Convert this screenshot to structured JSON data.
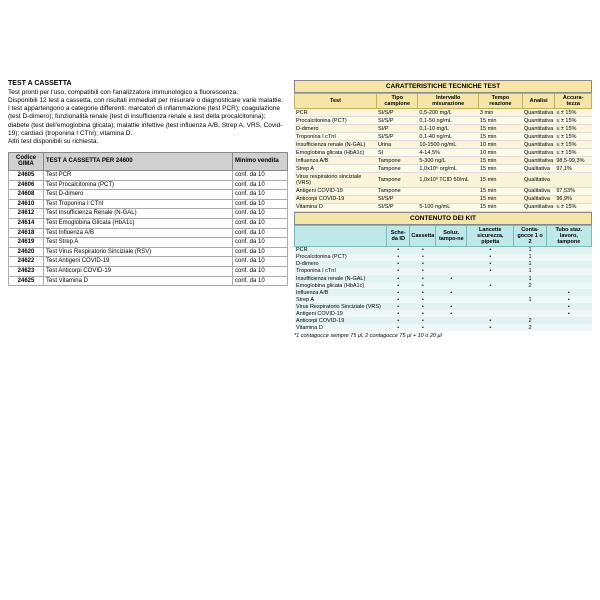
{
  "description": {
    "title": "TEST A CASSETTA",
    "p1": "Test pronti per l'uso, compatibili con l'analizzatore immunologico a fluorescenza.",
    "p2": "Disponibili 12 test a cassetta, con risultati immediati per misurare o diagnosticare varie malattie.",
    "p3": "I test appartengono a categorie differenti: marcatori di infiammazione (test PCR); coagulazione (test D-dimero); funzionalità renale (test di insufficienza renale e test della procalcitonina); diabete (test dell'emoglobina glicata); malattie infettive (test influenza A/B, Strep A, VRS, Covid-19); cardiaci (troponina I CTnI); vitamina D.",
    "p4": "Altri test disponibili su richiesta."
  },
  "leftTable": {
    "hCode": "Codice GIMA",
    "hDesc": "TEST A CASSETTA PER 24600",
    "hMin": "Minimo vendita",
    "rows": [
      {
        "c": "24605",
        "d": "Test PCR",
        "m": "conf. da 10"
      },
      {
        "c": "24606",
        "d": "Test Procalcitonina (PCT)",
        "m": "conf. da 10"
      },
      {
        "c": "24608",
        "d": "Test D-dimero",
        "m": "conf. da 10"
      },
      {
        "c": "24610",
        "d": "Test Troponina I CTnI",
        "m": "conf. da 10"
      },
      {
        "c": "24612",
        "d": "Test Insufficienza Renale (N-GAL)",
        "m": "conf. da 10"
      },
      {
        "c": "24614",
        "d": "Test Emoglobina Glicata (HbA1c)",
        "m": "conf. da 10"
      },
      {
        "c": "24618",
        "d": "Test Influenza A/B",
        "m": "conf. da 10"
      },
      {
        "c": "24619",
        "d": "Test Strep A",
        "m": "conf. da 10"
      },
      {
        "c": "24620",
        "d": "Test Virus Respiratorio Sinciziale (RSV)",
        "m": "conf. da 10"
      },
      {
        "c": "24622",
        "d": "Test Antigeni COVID-19",
        "m": "conf. da 10"
      },
      {
        "c": "24623",
        "d": "Test Anticorpi COVID-19",
        "m": "conf. da 10"
      },
      {
        "c": "24625",
        "d": "Test Vitamina D",
        "m": "conf. da 10"
      }
    ]
  },
  "techTable": {
    "title": "CARATTERISTICHE TECNICHE TEST",
    "h": [
      "Test",
      "Tipo campione",
      "Intervallo misurazione",
      "Tempo reazione",
      "Analisi",
      "Accura-tezza"
    ],
    "rows": [
      {
        "n": "PCR",
        "t": "SI/S/P",
        "i": "0,5-200 mg/L",
        "r": "3 min",
        "a": "Quantitativa",
        "e": "≤ ± 15%"
      },
      {
        "n": "Procalcitonina (PCT)",
        "t": "SI/S/P",
        "i": "0,1-50 ng/mL",
        "r": "15 min",
        "a": "Quantitativa",
        "e": "≤ ± 15%"
      },
      {
        "n": "D-dimero",
        "t": "SI/P",
        "i": "0,1-10 mg/L",
        "r": "15 min",
        "a": "Quantitativa",
        "e": "≤ ± 15%"
      },
      {
        "n": "Troponina I cTnI",
        "t": "SI/S/P",
        "i": "0,1-40 ng/mL",
        "r": "15 min",
        "a": "Quantitativa",
        "e": "≤ ± 15%"
      },
      {
        "n": "Insufficienza renale (N-GAL)",
        "t": "Urina",
        "i": "10-1500 ng/mL",
        "r": "10 min",
        "a": "Quantitativa",
        "e": "≤ ± 15%"
      },
      {
        "n": "Emoglobina glicata (HbA1c)",
        "t": "SI",
        "i": "4-14,5%",
        "r": "10 min",
        "a": "Quantitativa",
        "e": "≤ ± 15%"
      },
      {
        "n": "Influenza A/B",
        "t": "Tampone",
        "i": "5-300 ng/L",
        "r": "15 min",
        "a": "Quantitativa",
        "e": "98,5-99,3%"
      },
      {
        "n": "Strep A",
        "t": "Tampone",
        "i": "1,0x10⁶ org/mL",
        "r": "15 min",
        "a": "Qualitativa",
        "e": "97,1%"
      },
      {
        "n": "Virus respiratorio sinciziale (VRS)",
        "t": "Tampone",
        "i": "1,0x10³ TCID 50/mL",
        "r": "15 min",
        "a": "Qualitativa",
        "e": ""
      },
      {
        "n": "Antigeni COVID-19",
        "t": "Tampone",
        "i": "",
        "r": "15 min",
        "a": "Qualitativa",
        "e": "97,53%"
      },
      {
        "n": "Anticorpi COVID-19",
        "t": "SI/S/P",
        "i": "",
        "r": "15 min",
        "a": "Qualitativa",
        "e": "96,9%"
      },
      {
        "n": "Vitamina D",
        "t": "SI/S/P",
        "i": "5-100 ng/mL",
        "r": "15 min",
        "a": "Quantitativa",
        "e": "≤ ± 15%"
      }
    ]
  },
  "kitTable": {
    "title": "CONTENUTO DEI KIT",
    "h": [
      "",
      "Sche-da ID",
      "Cassetta",
      "Soluz. tampo-ne",
      "Lancette sicurezza, pipetta",
      "Conta-gocce 1 o 2",
      "Tubo staz. lavoro, tampone"
    ],
    "rows": [
      {
        "n": "PCR",
        "c": [
          "•",
          "•",
          "",
          "•",
          "1",
          ""
        ]
      },
      {
        "n": "Procalcitonina (PCT)",
        "c": [
          "•",
          "•",
          "",
          "•",
          "1",
          ""
        ]
      },
      {
        "n": "D-dimero",
        "c": [
          "•",
          "•",
          "",
          "•",
          "1",
          ""
        ]
      },
      {
        "n": "Troponina I cTnI",
        "c": [
          "•",
          "•",
          "",
          "•",
          "1",
          ""
        ]
      },
      {
        "n": "Insufficienza renale (N-GAL)",
        "c": [
          "•",
          "•",
          "•",
          "",
          "1",
          ""
        ]
      },
      {
        "n": "Emoglobina glicata (HbA1c)",
        "c": [
          "•",
          "•",
          "",
          "•",
          "2",
          ""
        ]
      },
      {
        "n": "Influenza A/B",
        "c": [
          "•",
          "•",
          "•",
          "",
          "",
          "•"
        ]
      },
      {
        "n": "Strep A",
        "c": [
          "•",
          "•",
          "",
          "",
          "1",
          "•"
        ]
      },
      {
        "n": "Virus Respiratorio Sinciziale (VRS)",
        "c": [
          "•",
          "•",
          "•",
          "",
          "",
          "•"
        ]
      },
      {
        "n": "Antigeni COVID-19",
        "c": [
          "•",
          "•",
          "•",
          "",
          "",
          "•"
        ]
      },
      {
        "n": "Anticorpi COVID-19",
        "c": [
          "•",
          "•",
          "",
          "•",
          "2",
          ""
        ]
      },
      {
        "n": "Vitamina D",
        "c": [
          "•",
          "•",
          "",
          "•",
          "2",
          ""
        ]
      }
    ],
    "footnote": "*1 contagocce sempre 75 μl, 2 contagocce 75 μl + 10 o 20 μl"
  },
  "colors": {
    "yellowBg": "#f5e6a8",
    "tealBg": "#bfe8e8",
    "greyBg": "#d0d0d0"
  }
}
